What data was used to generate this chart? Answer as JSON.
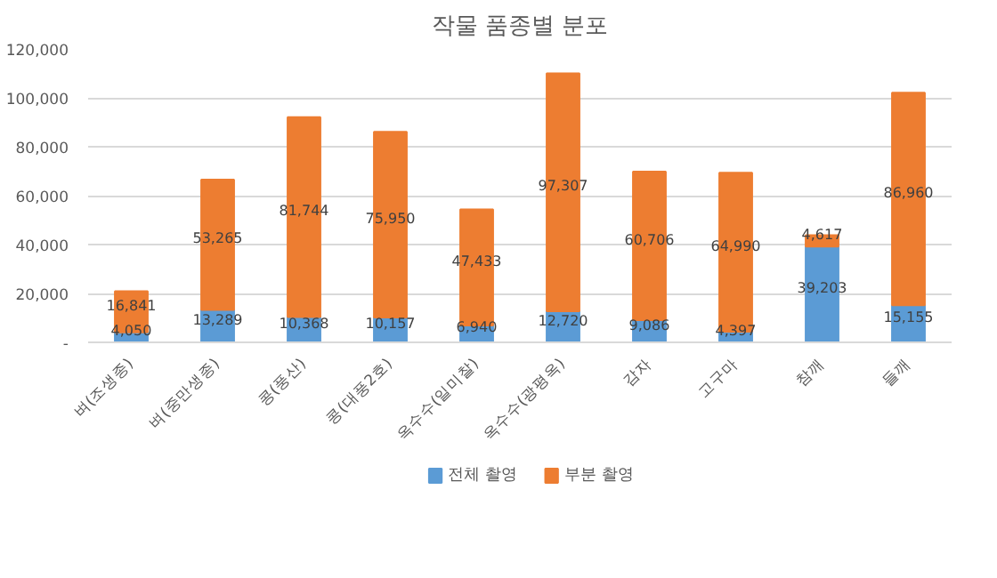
{
  "chart_data": {
    "type": "bar",
    "title": "작물 품종별 분포",
    "stacked": true,
    "categories": [
      "벼(조생종)",
      "벼(중만생종)",
      "콩(풍산)",
      "콩(대풍2호)",
      "옥수수(일미찰)",
      "옥수수(광평옥)",
      "감자",
      "고구마",
      "참깨",
      "들깨"
    ],
    "series": [
      {
        "name": "전체 촬영",
        "color": "#5b9bd5",
        "values": [
          4050,
          13289,
          10368,
          10157,
          6940,
          12720,
          9086,
          4397,
          39203,
          15155
        ],
        "value_labels": [
          "4,050",
          "13,289",
          "10,368",
          "10,157",
          "6,940",
          "12,720",
          "9,086",
          "4,397",
          "39,203",
          "15,155"
        ]
      },
      {
        "name": "부분 촬영",
        "color": "#ed7d31",
        "values": [
          16841,
          53265,
          81744,
          75950,
          47433,
          97307,
          60706,
          64990,
          4617,
          86960
        ],
        "value_labels": [
          "16,841",
          "53,265",
          "81,744",
          "75,950",
          "47,433",
          "97,307",
          "60,706",
          "64,990",
          "4,617",
          "86,960"
        ]
      }
    ],
    "ylim": [
      0,
      120000
    ],
    "yticks": [
      {
        "value": 0,
        "label": "-"
      },
      {
        "value": 20000,
        "label": "20,000"
      },
      {
        "value": 40000,
        "label": "40,000"
      },
      {
        "value": 60000,
        "label": "60,000"
      },
      {
        "value": 80000,
        "label": "80,000"
      },
      {
        "value": 100000,
        "label": "100,000"
      },
      {
        "value": 120000,
        "label": "120,000"
      }
    ],
    "grid": "y",
    "legend": "bottom",
    "data_labels": true
  }
}
